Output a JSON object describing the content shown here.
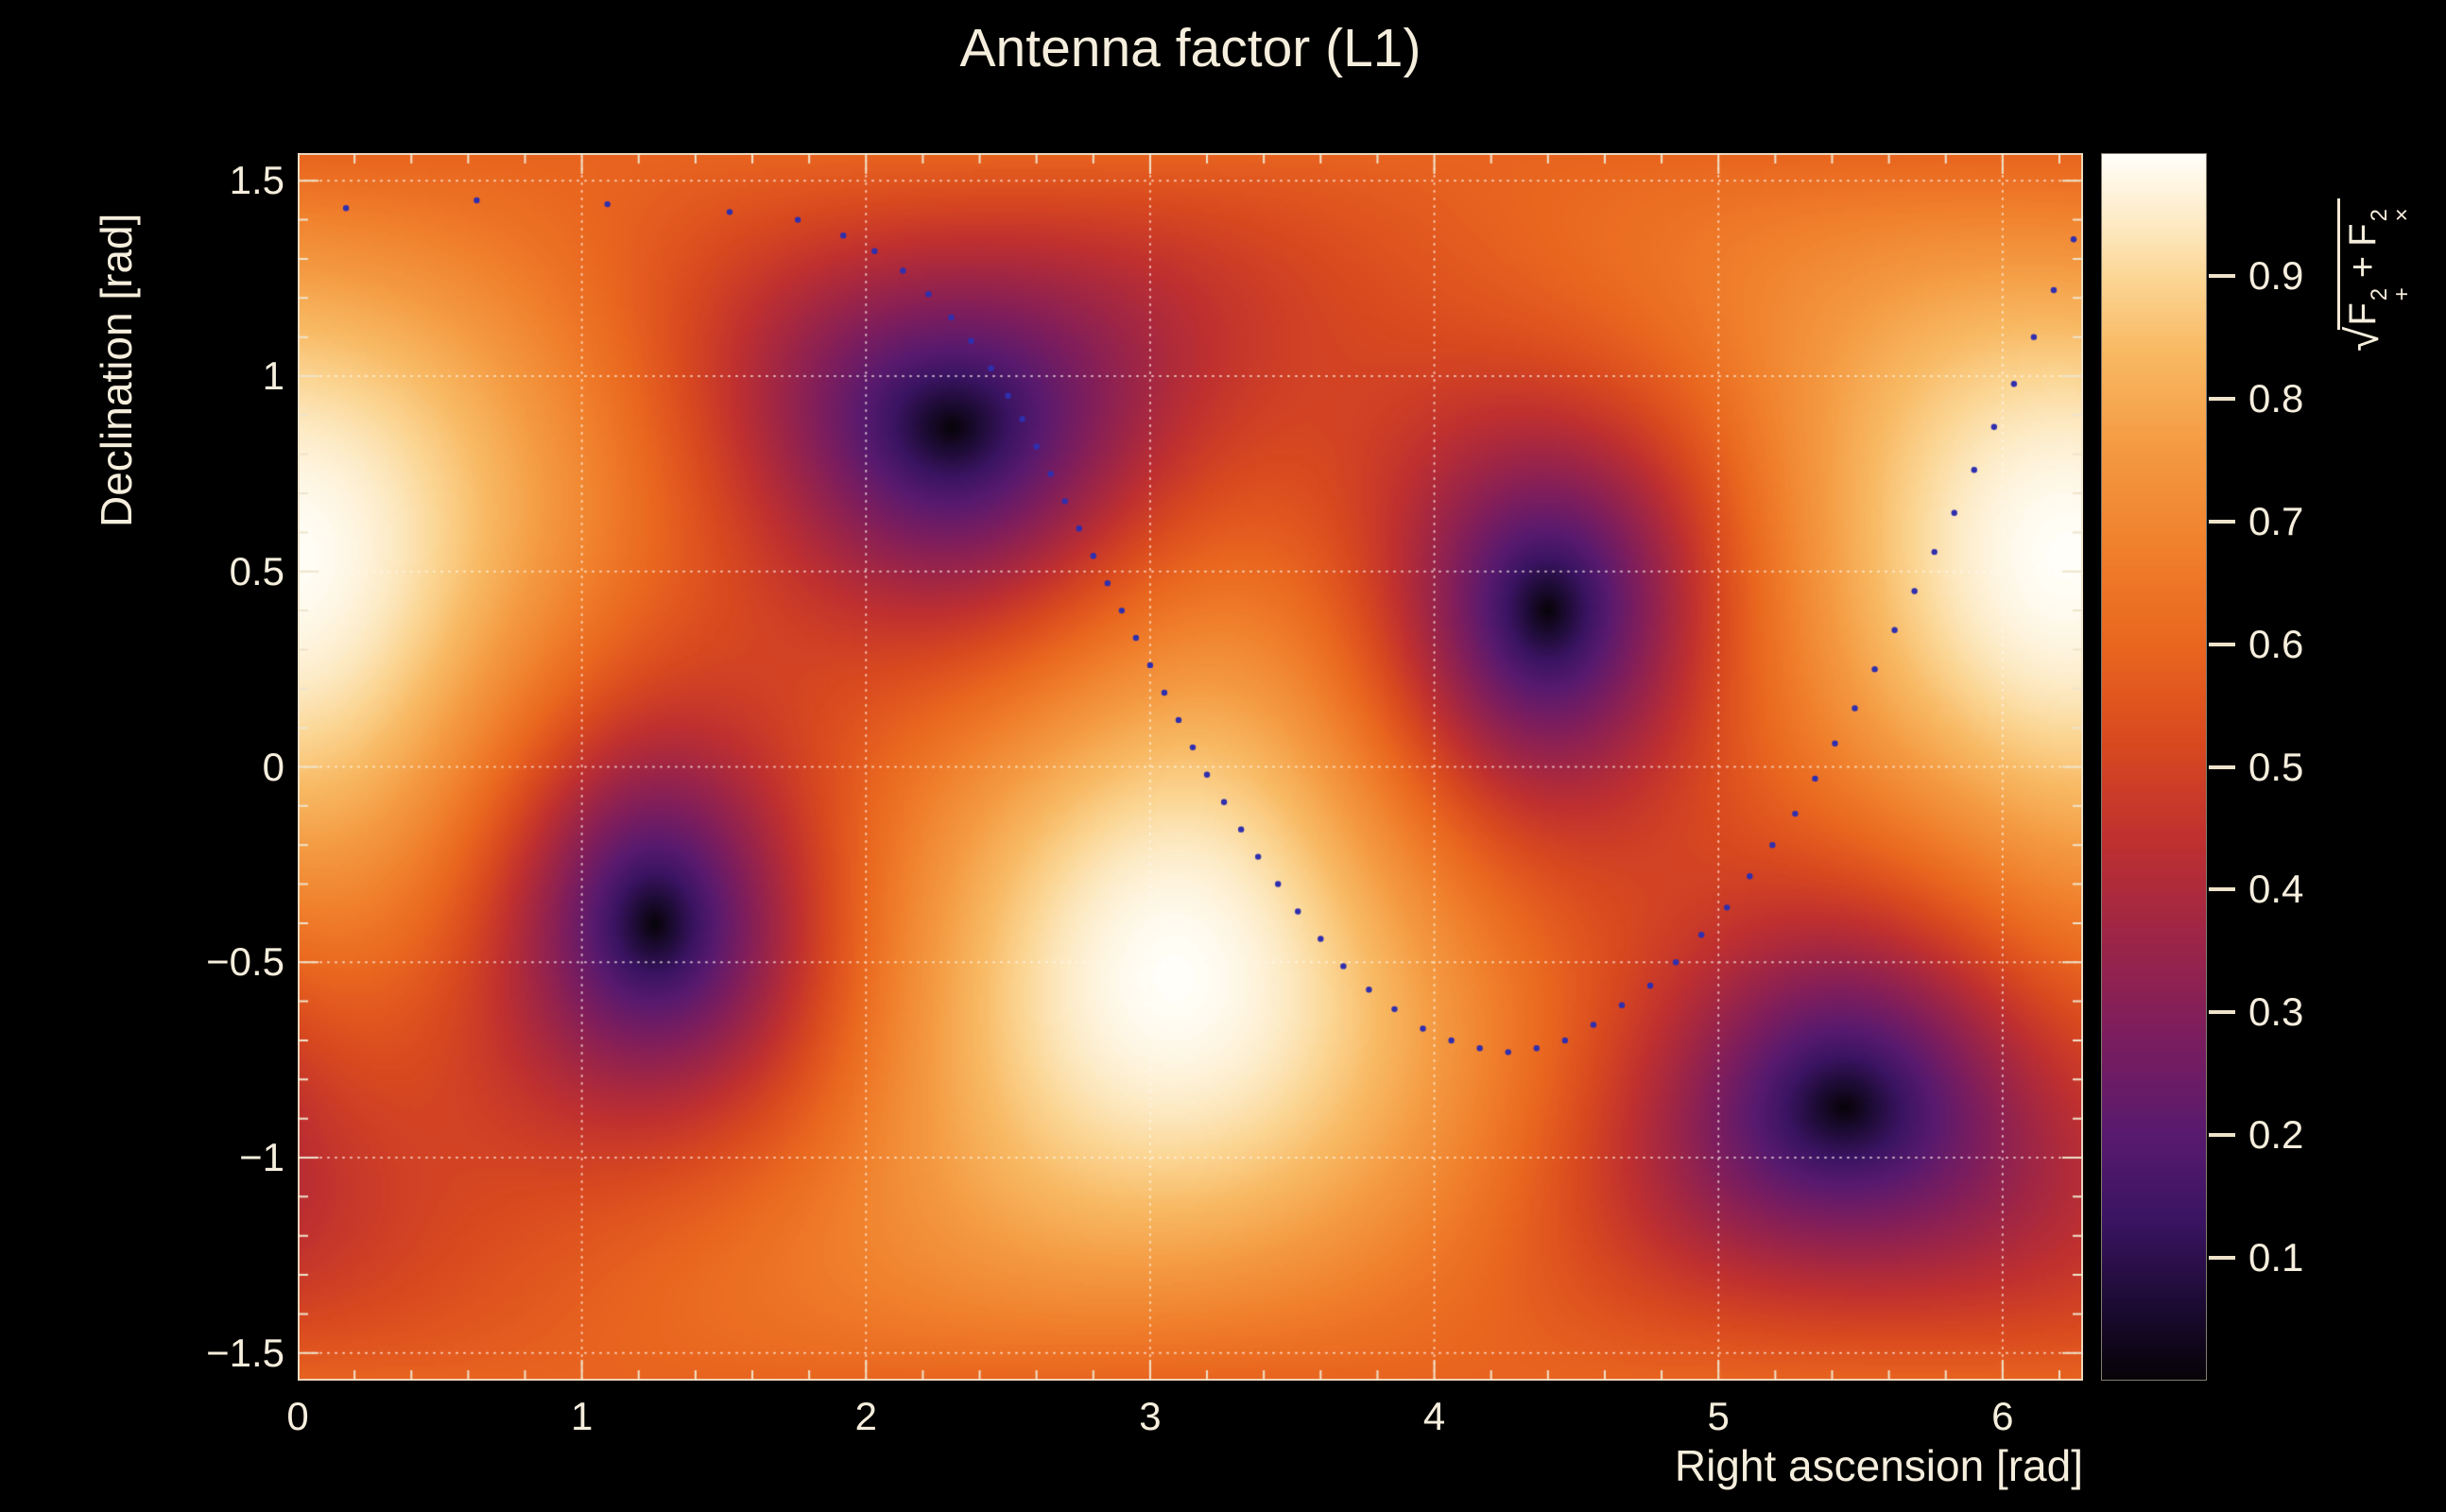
{
  "chart_data": {
    "type": "heatmap",
    "title": "Antenna factor (L1)",
    "xlabel": "Right ascension [rad]",
    "ylabel": "Declination [rad]",
    "zlabel": {
      "radical_sign": "√",
      "term1_base": "F",
      "term1_sup": "2",
      "term1_sub": "+",
      "operator": "+",
      "term2_base": "F",
      "term2_sup": "2",
      "term2_sub": "×"
    },
    "x_range": [
      0,
      6.2832
    ],
    "y_range": [
      -1.5708,
      1.5708
    ],
    "z_range": [
      0,
      1.0
    ],
    "x_ticks": [
      {
        "v": 0,
        "label": "0"
      },
      {
        "v": 1,
        "label": "1"
      },
      {
        "v": 2,
        "label": "2"
      },
      {
        "v": 3,
        "label": "3"
      },
      {
        "v": 4,
        "label": "4"
      },
      {
        "v": 5,
        "label": "5"
      },
      {
        "v": 6,
        "label": "6"
      }
    ],
    "y_ticks": [
      {
        "v": 1.5,
        "label": "1.5"
      },
      {
        "v": 1.0,
        "label": "1"
      },
      {
        "v": 0.5,
        "label": "0.5"
      },
      {
        "v": 0.0,
        "label": "0"
      },
      {
        "v": -0.5,
        "label": "−0.5"
      },
      {
        "v": -1.0,
        "label": "−1"
      },
      {
        "v": -1.5,
        "label": "−1.5"
      }
    ],
    "x_minor_step": 0.2,
    "y_minor_step": 0.1,
    "colorbar_ticks": [
      {
        "v": 0.1,
        "label": "0.1"
      },
      {
        "v": 0.2,
        "label": "0.2"
      },
      {
        "v": 0.3,
        "label": "0.3"
      },
      {
        "v": 0.4,
        "label": "0.4"
      },
      {
        "v": 0.5,
        "label": "0.5"
      },
      {
        "v": 0.6,
        "label": "0.6"
      },
      {
        "v": 0.7,
        "label": "0.7"
      },
      {
        "v": 0.8,
        "label": "0.8"
      },
      {
        "v": 0.9,
        "label": "0.9"
      }
    ],
    "model": {
      "description": "Interferometer antenna power pattern sqrt(F+^2 + Fx^2); nulls on the detector-plane great circle, maxima at zenith/nadir",
      "null_points": [
        [
          2.3,
          0.87
        ],
        [
          4.4,
          0.4
        ],
        [
          1.26,
          -0.42
        ],
        [
          5.44,
          -0.88
        ]
      ],
      "maxima": [
        [
          6.23,
          0.54
        ],
        [
          3.09,
          -0.54
        ]
      ],
      "saddle_value": 0.5
    },
    "palette_stops": [
      [
        0.0,
        "#070308"
      ],
      [
        0.06,
        "#1c0b33"
      ],
      [
        0.13,
        "#3b1463"
      ],
      [
        0.2,
        "#591a6e"
      ],
      [
        0.28,
        "#7c1d5e"
      ],
      [
        0.36,
        "#9d2547"
      ],
      [
        0.44,
        "#bf3030"
      ],
      [
        0.52,
        "#d9491f"
      ],
      [
        0.6,
        "#e9661f"
      ],
      [
        0.68,
        "#f0802c"
      ],
      [
        0.76,
        "#f49a42"
      ],
      [
        0.84,
        "#f8b963"
      ],
      [
        0.9,
        "#fbd694"
      ],
      [
        0.95,
        "#fdecc8"
      ],
      [
        1.0,
        "#fffef8"
      ]
    ],
    "grid": {
      "color": "rgba(255,250,240,0.7)",
      "dash": [
        1,
        7
      ]
    },
    "axis_color": "#efe3cb",
    "text_color": "#f6eedd",
    "track": {
      "name": "source-sky-track",
      "color": "#2f2fae",
      "dot_radius_px": 3.2,
      "points": [
        [
          0.17,
          1.43
        ],
        [
          0.63,
          1.45
        ],
        [
          1.09,
          1.44
        ],
        [
          1.52,
          1.42
        ],
        [
          1.76,
          1.4
        ],
        [
          1.92,
          1.36
        ],
        [
          2.03,
          1.32
        ],
        [
          2.13,
          1.27
        ],
        [
          2.22,
          1.21
        ],
        [
          2.3,
          1.15
        ],
        [
          2.37,
          1.09
        ],
        [
          2.44,
          1.02
        ],
        [
          2.5,
          0.95
        ],
        [
          2.55,
          0.89
        ],
        [
          2.6,
          0.82
        ],
        [
          2.65,
          0.75
        ],
        [
          2.7,
          0.68
        ],
        [
          2.75,
          0.61
        ],
        [
          2.8,
          0.54
        ],
        [
          2.85,
          0.47
        ],
        [
          2.9,
          0.4
        ],
        [
          2.95,
          0.33
        ],
        [
          3.0,
          0.26
        ],
        [
          3.05,
          0.19
        ],
        [
          3.1,
          0.12
        ],
        [
          3.15,
          0.05
        ],
        [
          3.2,
          -0.02
        ],
        [
          3.26,
          -0.09
        ],
        [
          3.32,
          -0.16
        ],
        [
          3.38,
          -0.23
        ],
        [
          3.45,
          -0.3
        ],
        [
          3.52,
          -0.37
        ],
        [
          3.6,
          -0.44
        ],
        [
          3.68,
          -0.51
        ],
        [
          3.77,
          -0.57
        ],
        [
          3.86,
          -0.62
        ],
        [
          3.96,
          -0.67
        ],
        [
          4.06,
          -0.7
        ],
        [
          4.16,
          -0.72
        ],
        [
          4.26,
          -0.73
        ],
        [
          4.36,
          -0.72
        ],
        [
          4.46,
          -0.7
        ],
        [
          4.56,
          -0.66
        ],
        [
          4.66,
          -0.61
        ],
        [
          4.76,
          -0.56
        ],
        [
          4.85,
          -0.5
        ],
        [
          4.94,
          -0.43
        ],
        [
          5.03,
          -0.36
        ],
        [
          5.11,
          -0.28
        ],
        [
          5.19,
          -0.2
        ],
        [
          5.27,
          -0.12
        ],
        [
          5.34,
          -0.03
        ],
        [
          5.41,
          0.06
        ],
        [
          5.48,
          0.15
        ],
        [
          5.55,
          0.25
        ],
        [
          5.62,
          0.35
        ],
        [
          5.69,
          0.45
        ],
        [
          5.76,
          0.55
        ],
        [
          5.83,
          0.65
        ],
        [
          5.9,
          0.76
        ],
        [
          5.97,
          0.87
        ],
        [
          6.04,
          0.98
        ],
        [
          6.11,
          1.1
        ],
        [
          6.18,
          1.22
        ],
        [
          6.25,
          1.35
        ]
      ]
    }
  }
}
